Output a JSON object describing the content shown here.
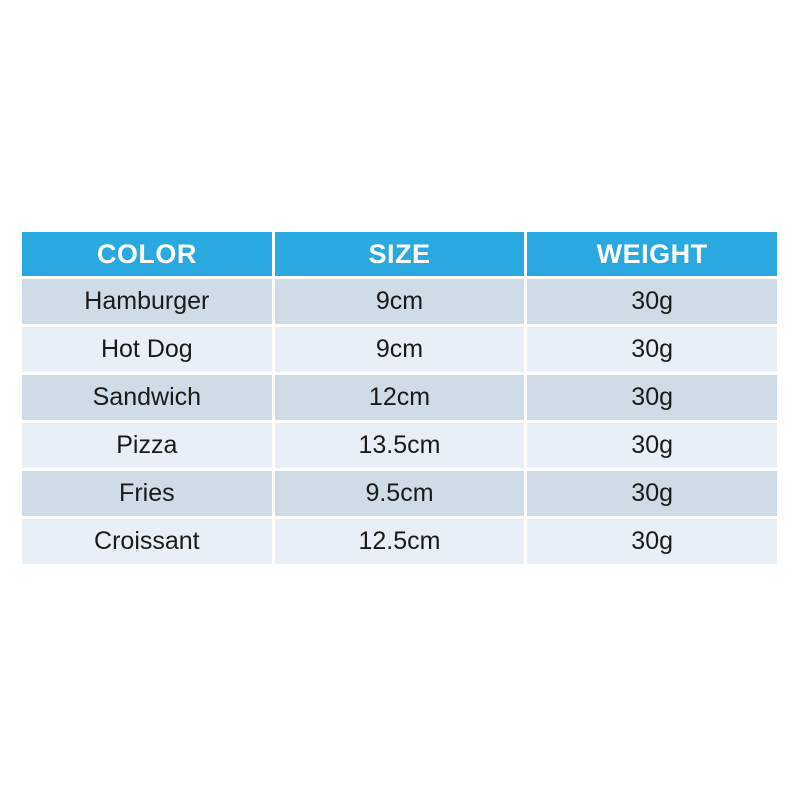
{
  "table": {
    "headers": [
      "COLOR",
      "SIZE",
      "WEIGHT"
    ],
    "rows": [
      [
        "Hamburger",
        "9cm",
        "30g"
      ],
      [
        "Hot Dog",
        "9cm",
        "30g"
      ],
      [
        "Sandwich",
        "12cm",
        "30g"
      ],
      [
        "Pizza",
        "13.5cm",
        "30g"
      ],
      [
        "Fries",
        "9.5cm",
        "30g"
      ],
      [
        "Croissant",
        "12.5cm",
        "30g"
      ]
    ]
  },
  "colors": {
    "header_bg": "#29a9e0",
    "header_text": "#ffffff",
    "row_dark_bg": "#cfdce7",
    "row_light_bg": "#e9eff7",
    "cell_text": "#1a1a1a",
    "page_bg": "#ffffff"
  }
}
